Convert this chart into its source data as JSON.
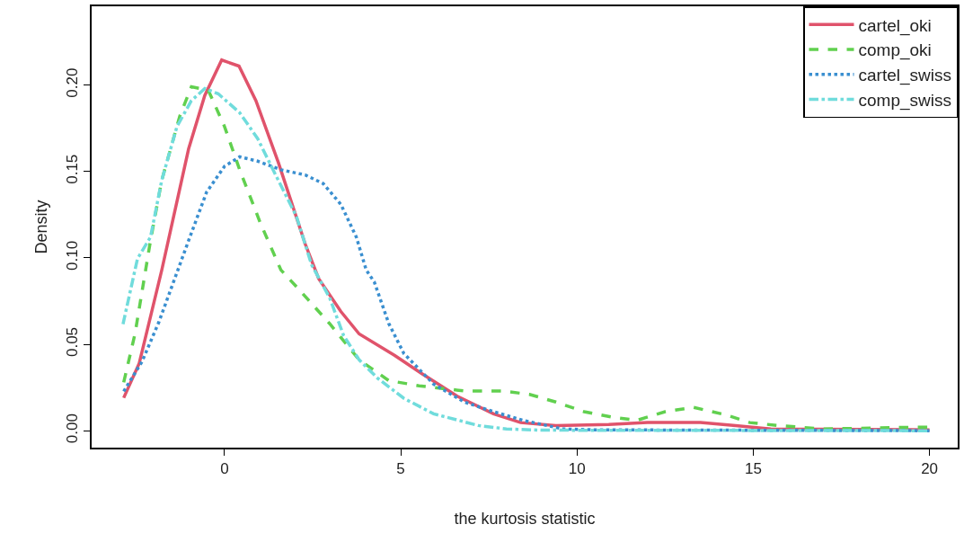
{
  "chart_data": {
    "type": "line",
    "xlabel": "the kurtosis statistic",
    "ylabel": "Density",
    "xlim": [
      -3.77,
      20.8
    ],
    "ylim": [
      -0.0098,
      0.2456
    ],
    "xticks": [
      0,
      5,
      10,
      15,
      20
    ],
    "yticks": [
      {
        "value": 0,
        "label": "0.00"
      },
      {
        "value": 0.05,
        "label": "0.05"
      },
      {
        "value": 0.1,
        "label": "0.10"
      },
      {
        "value": 0.15,
        "label": "0.15"
      },
      {
        "value": 0.2,
        "label": "0.20"
      }
    ],
    "grid": false,
    "legend": "top right",
    "marker": "none",
    "series": [
      {
        "name": "cartel_oki",
        "color": "#e0536b",
        "line_style": "solid",
        "x": [
          -2.86,
          -2.42,
          -1.78,
          -1.02,
          -0.56,
          -0.08,
          0.41,
          0.89,
          1.53,
          2.29,
          2.67,
          3.3,
          3.82,
          4.83,
          5.6,
          6.6,
          7.63,
          8.4,
          9.4,
          10.9,
          12,
          13.5,
          14.5,
          15.5,
          20
        ],
        "values": [
          0.019,
          0.039,
          0.093,
          0.163,
          0.194,
          0.2145,
          0.211,
          0.191,
          0.155,
          0.108,
          0.088,
          0.069,
          0.056,
          0.0435,
          0.033,
          0.02,
          0.0098,
          0.0047,
          0.003,
          0.0036,
          0.0047,
          0.0047,
          0.003,
          0.001,
          0.0005
        ]
      },
      {
        "name": "comp_oki",
        "color": "#61d04f",
        "line_style": "dashed",
        "x": [
          -2.86,
          -2.54,
          -2.1,
          -1.78,
          -1.27,
          -0.94,
          -0.46,
          0,
          0.43,
          1.02,
          1.6,
          2.1,
          2.98,
          3.82,
          4.66,
          5.52,
          6.8,
          7.9,
          8.65,
          9.4,
          10.2,
          11,
          11.7,
          12.5,
          13.3,
          14.2,
          14.9,
          15.7,
          17,
          19.5,
          20
        ],
        "values": [
          0.028,
          0.056,
          0.11,
          0.145,
          0.182,
          0.199,
          0.197,
          0.176,
          0.151,
          0.12,
          0.093,
          0.082,
          0.062,
          0.041,
          0.029,
          0.026,
          0.023,
          0.023,
          0.021,
          0.0166,
          0.011,
          0.0078,
          0.006,
          0.011,
          0.0135,
          0.0093,
          0.0047,
          0.003,
          0.001,
          0.002,
          0.002
        ]
      },
      {
        "name": "cartel_swiss",
        "color": "#3a8fd0",
        "line_style": "dotted",
        "x": [
          -2.86,
          -2.34,
          -1.86,
          -1.27,
          -1.02,
          -0.51,
          0,
          0.43,
          0.94,
          1.6,
          2.29,
          2.8,
          3.3,
          3.74,
          4.02,
          4.25,
          4.66,
          5.09,
          5.93,
          6.8,
          7.63,
          8.47,
          9.6,
          10.5,
          20
        ],
        "values": [
          0.0228,
          0.04,
          0.063,
          0.096,
          0.11,
          0.138,
          0.153,
          0.1585,
          0.156,
          0.151,
          0.148,
          0.143,
          0.131,
          0.112,
          0.093,
          0.086,
          0.062,
          0.0446,
          0.027,
          0.0166,
          0.011,
          0.006,
          0.001,
          0.0005,
          0
        ]
      },
      {
        "name": "comp_swiss",
        "color": "#70dcdc",
        "line_style": "dashdot",
        "x": [
          -2.88,
          -2.47,
          -2.1,
          -1.78,
          -1.35,
          -0.94,
          -0.56,
          -0.18,
          0.43,
          0.94,
          1.45,
          2.04,
          2.47,
          2.98,
          3.38,
          3.82,
          4.33,
          5.09,
          5.93,
          7.2,
          8,
          9,
          20
        ],
        "values": [
          0.0617,
          0.0995,
          0.112,
          0.145,
          0.176,
          0.191,
          0.198,
          0.195,
          0.184,
          0.169,
          0.148,
          0.124,
          0.096,
          0.077,
          0.055,
          0.041,
          0.0306,
          0.0187,
          0.0098,
          0.003,
          0.001,
          0.0003,
          0
        ]
      }
    ]
  }
}
